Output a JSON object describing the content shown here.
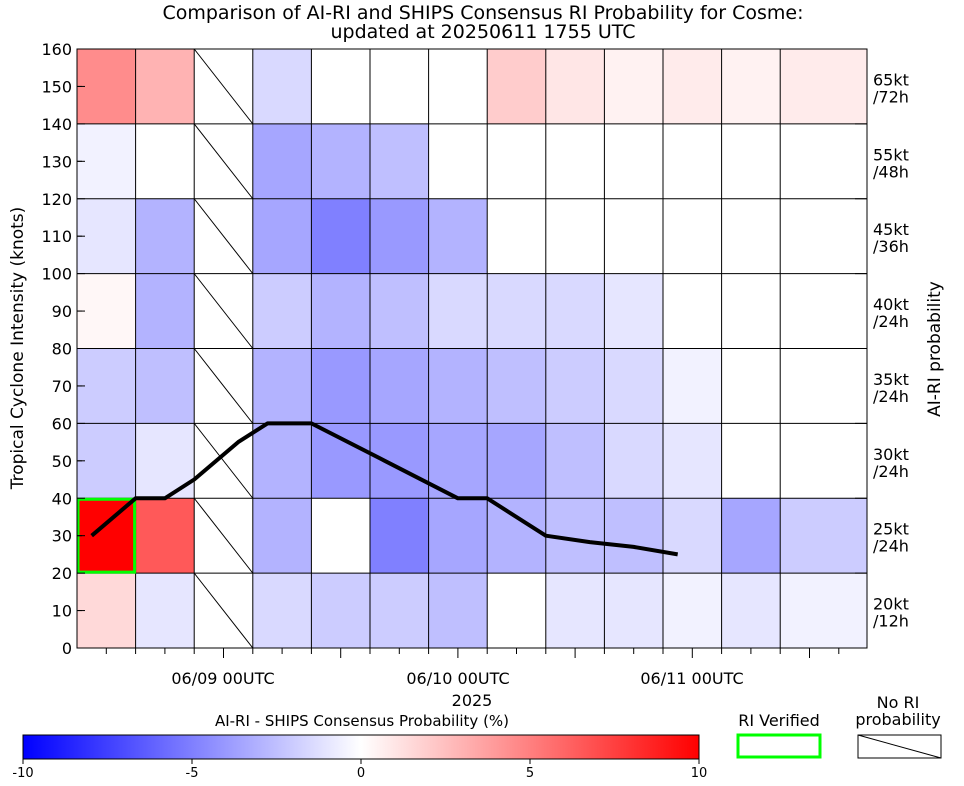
{
  "chart_data": {
    "type": "heatmap",
    "title_line1": "Comparison of AI-RI and SHIPS Consensus RI Probability for Cosme:",
    "title_line2": "updated at 20250611 1755 UTC",
    "ylabel": "Tropical Cyclone Intensity (knots)",
    "right_label": "AI-RI probability",
    "xlabel_year": "2025",
    "x_tick_labels": [
      "06/09 00UTC",
      "06/10 00UTC",
      "06/11 00UTC"
    ],
    "y_ticks": [
      0,
      10,
      20,
      30,
      40,
      50,
      60,
      70,
      80,
      90,
      100,
      110,
      120,
      130,
      140,
      150,
      160
    ],
    "ylim": [
      0,
      160
    ],
    "x_hours_from_start": [
      0,
      12,
      24,
      36,
      48,
      60,
      72,
      84,
      96,
      108,
      120,
      132,
      144,
      156
    ],
    "bands": [
      {
        "ymin": 0,
        "ymax": 20,
        "label_line1": "20kt",
        "label_line2": "/12h"
      },
      {
        "ymin": 20,
        "ymax": 40,
        "label_line1": "25kt",
        "label_line2": "/24h"
      },
      {
        "ymin": 40,
        "ymax": 60,
        "label_line1": "30kt",
        "label_line2": "/24h"
      },
      {
        "ymin": 60,
        "ymax": 80,
        "label_line1": "35kt",
        "label_line2": "/24h"
      },
      {
        "ymin": 80,
        "ymax": 100,
        "label_line1": "40kt",
        "label_line2": "/24h"
      },
      {
        "ymin": 100,
        "ymax": 120,
        "label_line1": "45kt",
        "label_line2": "/36h"
      },
      {
        "ymin": 120,
        "ymax": 140,
        "label_line1": "55kt",
        "label_line2": "/48h"
      },
      {
        "ymin": 140,
        "ymax": 160,
        "label_line1": "65kt",
        "label_line2": "/72h"
      }
    ],
    "probability_difference": [
      [
        1.5,
        -1.0,
        null,
        -1.5,
        -2.0,
        -2.0,
        -2.5,
        0.0,
        -1.0,
        -1.0,
        -0.5,
        -1.0,
        -0.5
      ],
      [
        10.0,
        6.5,
        null,
        -3.0,
        0.0,
        -5.0,
        -3.5,
        -3.0,
        -2.5,
        -2.5,
        -1.5,
        -3.5,
        -2.0
      ],
      [
        -2.0,
        -1.0,
        null,
        -3.0,
        -4.0,
        -4.0,
        -3.5,
        -3.5,
        -2.5,
        -1.5,
        -1.0,
        0.0,
        0.0
      ],
      [
        -2.0,
        -2.5,
        null,
        -3.0,
        -4.0,
        -3.5,
        -3.0,
        -2.5,
        -2.0,
        -1.5,
        -0.5,
        0.0,
        0.0
      ],
      [
        0.3,
        -3.0,
        null,
        -2.0,
        -3.0,
        -2.5,
        -1.5,
        -1.5,
        -1.5,
        -1.0,
        0.0,
        0.0,
        0.0
      ],
      [
        -1.0,
        -3.0,
        null,
        -3.5,
        -5.0,
        -4.0,
        -3.0,
        0.0,
        0.0,
        0.0,
        0.0,
        0.0,
        0.0
      ],
      [
        -0.5,
        0.0,
        null,
        -3.5,
        -3.0,
        -2.5,
        0.0,
        0.0,
        0.0,
        0.0,
        0.0,
        0.0,
        0.0
      ],
      [
        4.5,
        3.0,
        null,
        -1.5,
        0.0,
        0.0,
        0.0,
        2.0,
        1.0,
        0.5,
        0.8,
        0.5,
        0.8
      ]
    ],
    "intensity_line": {
      "hours": [
        3,
        12,
        18,
        24,
        33,
        39,
        48,
        63,
        78,
        84,
        96,
        105,
        114,
        123
      ],
      "knots": [
        30,
        40,
        40,
        45,
        55,
        60,
        60,
        50,
        40,
        40,
        30,
        28.3,
        27,
        25
      ]
    },
    "ri_verified_cell": {
      "column": 0,
      "band": 1
    },
    "colorbar": {
      "label": "AI-RI - SHIPS Consensus Probability (%)",
      "min": -10,
      "max": 10,
      "tick_values": [
        -10,
        -5,
        0,
        5,
        10
      ],
      "tick_labels": [
        "-10",
        "-5",
        "0",
        "5",
        "10"
      ]
    },
    "legend_ri_verified": "RI Verified",
    "legend_no_ri_line1": "No RI",
    "legend_no_ri_line2": "probability",
    "colors": {
      "negative": "#0000ff",
      "zero": "#ffffff",
      "positive": "#ff0000",
      "verified": "#00ff00",
      "line": "#000000"
    }
  }
}
